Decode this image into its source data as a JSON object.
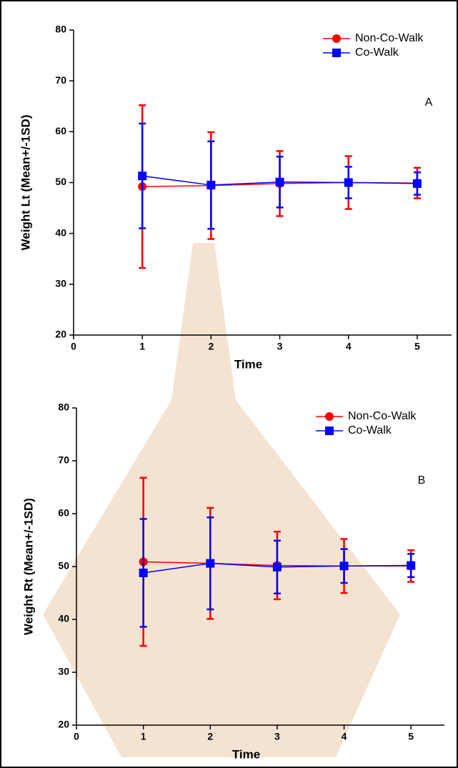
{
  "chart_data": [
    {
      "type": "errorbar-line",
      "ylabel": "Weight Lt (Mean+/-1SD)",
      "xlabel": "Time",
      "annotation": "A",
      "x": [
        1,
        2,
        3,
        4,
        5
      ],
      "xlim": [
        0,
        5.5
      ],
      "xticks": [
        0,
        1,
        2,
        3,
        4,
        5
      ],
      "ylim": [
        20,
        80
      ],
      "yticks": [
        20,
        30,
        40,
        50,
        60,
        70,
        80
      ],
      "legend": "upper right",
      "series": [
        {
          "name": "Non-Co-Walk",
          "color": "#ff0000",
          "marker": "circle",
          "values": [
            49.2,
            49.4,
            49.8,
            50.0,
            49.9
          ],
          "errors": [
            16,
            10.5,
            6.4,
            5.2,
            3
          ]
        },
        {
          "name": "Co-Walk",
          "color": "#0000ff",
          "marker": "square",
          "values": [
            51.3,
            49.5,
            50.1,
            50.0,
            49.8
          ],
          "errors": [
            10.3,
            8.6,
            5,
            3.1,
            2.2
          ]
        }
      ]
    },
    {
      "type": "errorbar-line",
      "ylabel": "Weight Rt (Mean+/-1SD)",
      "xlabel": "Time",
      "annotation": "B",
      "x": [
        1,
        2,
        3,
        4,
        5
      ],
      "xlim": [
        0,
        5.5
      ],
      "xticks": [
        0,
        1,
        2,
        3,
        4,
        5
      ],
      "ylim": [
        20,
        80
      ],
      "yticks": [
        20,
        30,
        40,
        50,
        60,
        70,
        80
      ],
      "legend": "upper right",
      "series": [
        {
          "name": "Non-Co-Walk",
          "color": "#ff0000",
          "marker": "circle",
          "values": [
            50.9,
            50.6,
            50.2,
            50.1,
            50.1
          ],
          "errors": [
            15.9,
            10.5,
            6.4,
            5.1,
            3
          ]
        },
        {
          "name": "Co-Walk",
          "color": "#0000ff",
          "marker": "square",
          "values": [
            48.8,
            50.6,
            49.9,
            50.1,
            50.2
          ],
          "errors": [
            10.2,
            8.7,
            5,
            3.2,
            2.2
          ]
        }
      ]
    }
  ]
}
